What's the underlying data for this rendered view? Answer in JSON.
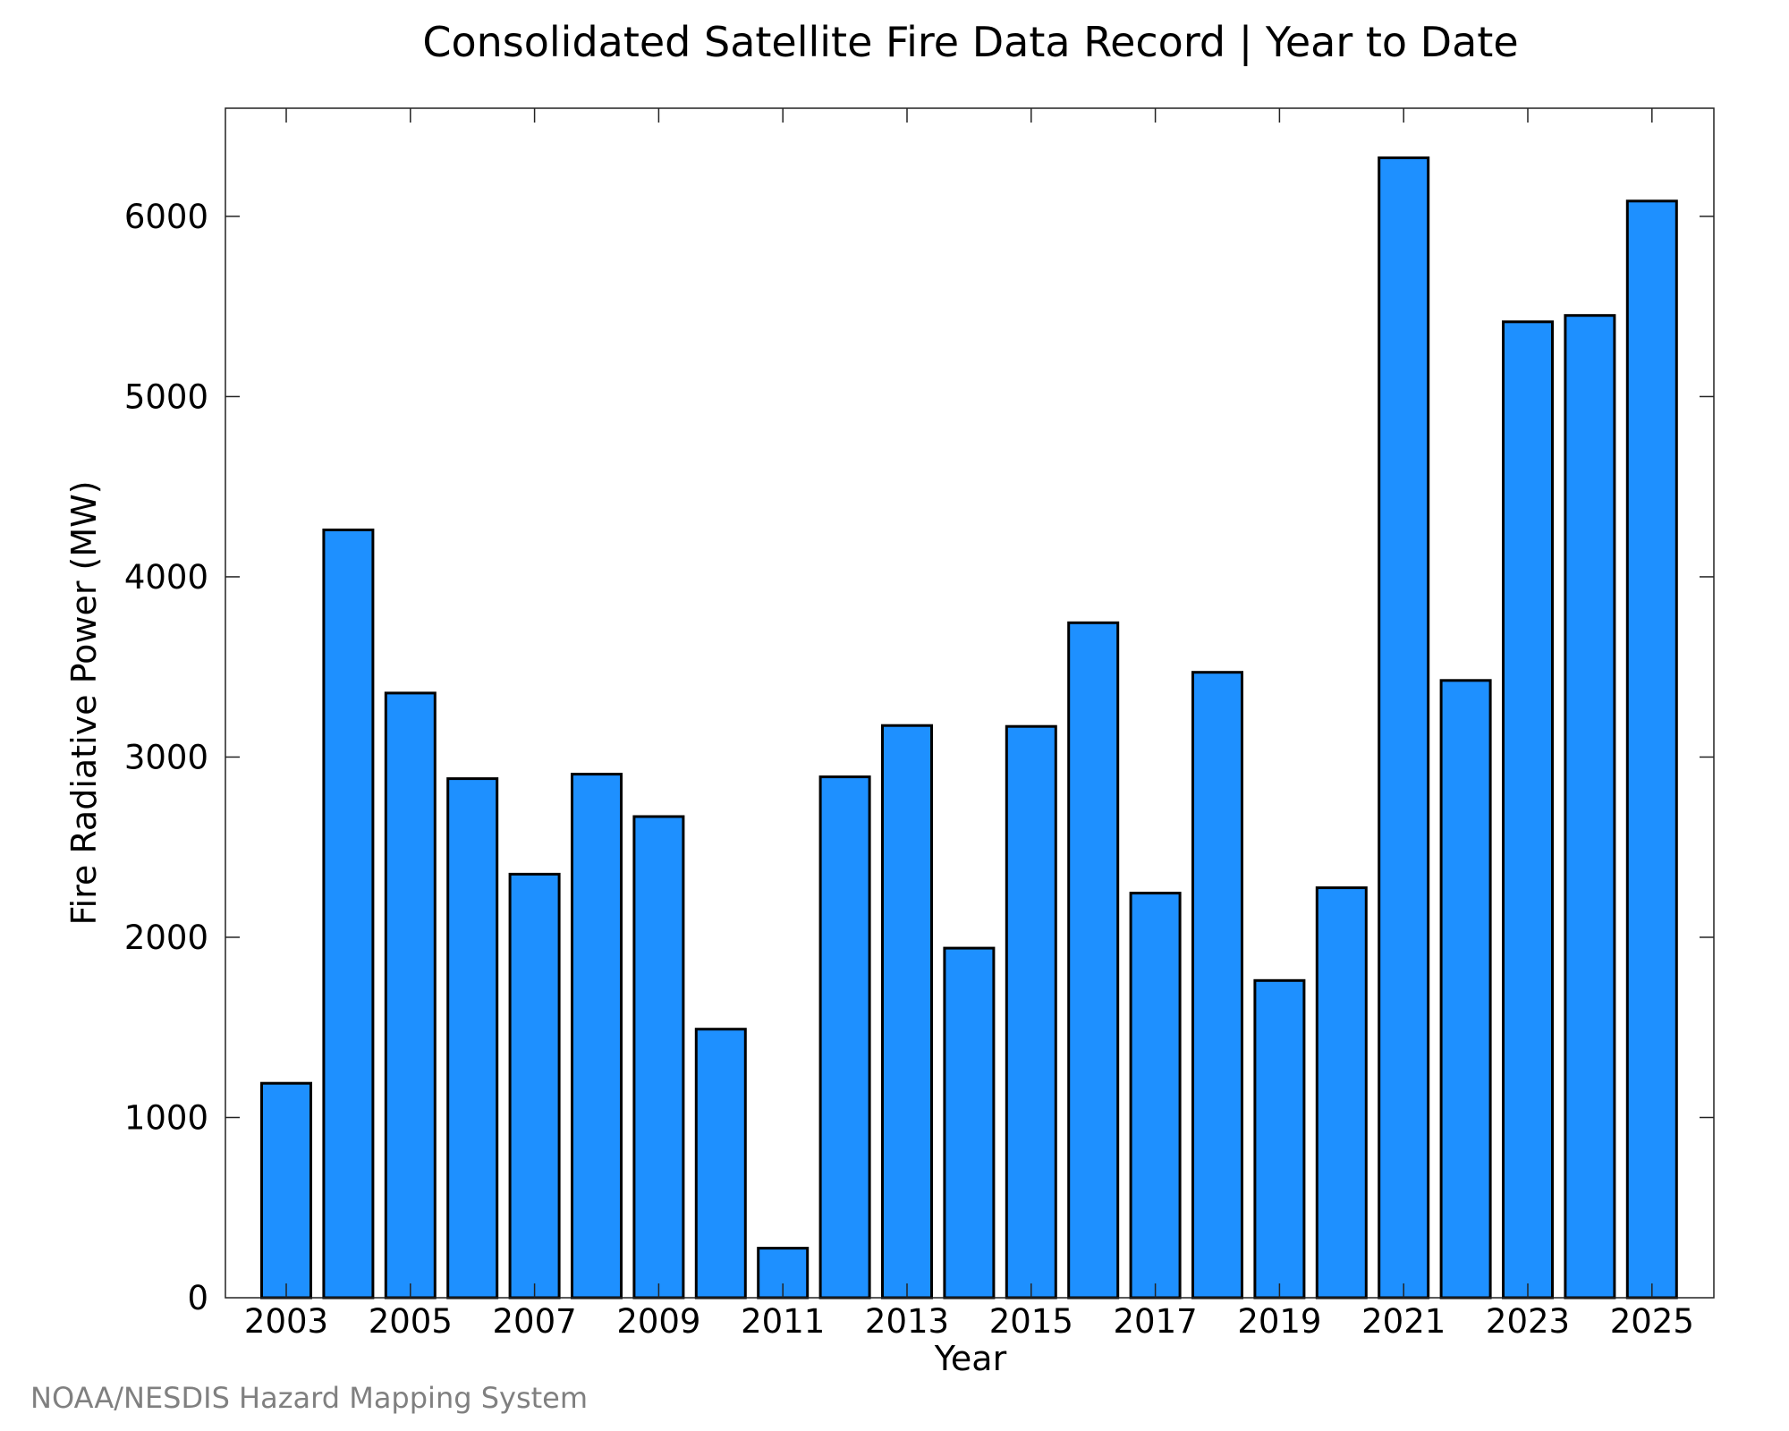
{
  "chart_data": {
    "type": "bar",
    "title": "Consolidated Satellite Fire Data Record | Year to Date",
    "xlabel": "Year",
    "ylabel": "Fire Radiative Power (MW)",
    "categories": [
      "2003",
      "2004",
      "2005",
      "2006",
      "2007",
      "2008",
      "2009",
      "2010",
      "2011",
      "2012",
      "2013",
      "2014",
      "2015",
      "2016",
      "2017",
      "2018",
      "2019",
      "2020",
      "2021",
      "2022",
      "2023",
      "2024",
      "2025"
    ],
    "x_tick_labels": [
      "2003",
      "2005",
      "2007",
      "2009",
      "2011",
      "2013",
      "2015",
      "2017",
      "2019",
      "2021",
      "2023",
      "2025"
    ],
    "series": [
      {
        "values": [
          1190,
          4260,
          3355,
          2880,
          2350,
          2905,
          2670,
          1490,
          275,
          2890,
          3175,
          1940,
          3170,
          3745,
          2245,
          3470,
          1760,
          2275,
          6325,
          3425,
          5415,
          5450,
          6085
        ]
      }
    ],
    "ylim": [
      0,
      6600
    ],
    "y_ticks": [
      0,
      1000,
      2000,
      3000,
      4000,
      5000,
      6000
    ],
    "y_tick_labels": [
      "0",
      "1000",
      "2000",
      "3000",
      "4000",
      "5000",
      "6000"
    ],
    "bar_color": "#1e90ff",
    "bar_edge_color": "#000000",
    "grid": false,
    "legend": "none"
  },
  "footer": {
    "credit": "NOAA/NESDIS Hazard Mapping System"
  }
}
